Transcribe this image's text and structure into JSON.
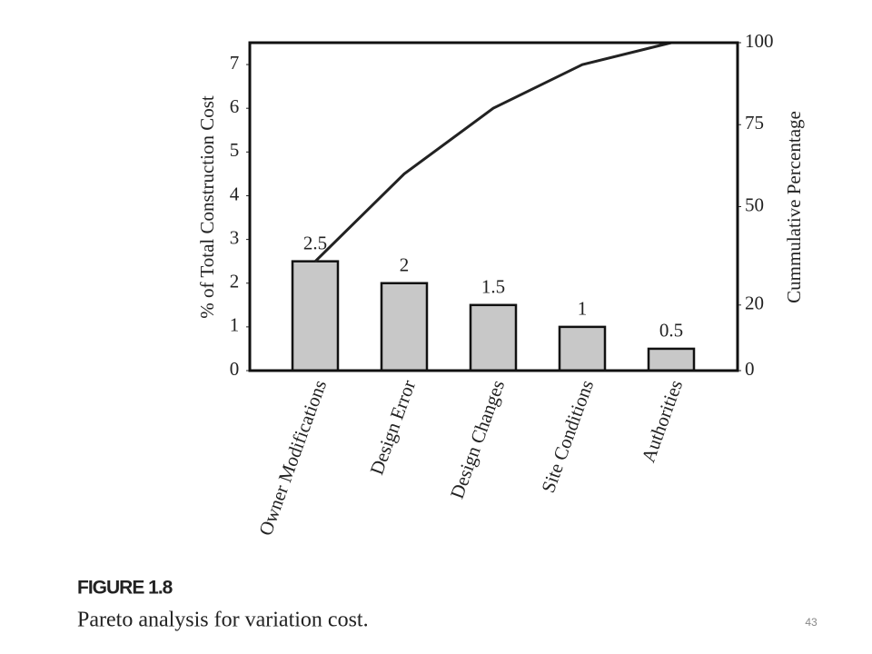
{
  "chart_data": {
    "type": "pareto",
    "y_label": "% of Total Construction Cost",
    "y2_label": "Cummulative Percentage",
    "categories": [
      "Owner Modifications",
      "Design Error",
      "Design Changes",
      "Site Conditions",
      "Authorities"
    ],
    "series": [
      {
        "name": "% of Total Construction Cost",
        "color": "#c8c8c8",
        "values": [
          2.5,
          2,
          1.5,
          1,
          0.5
        ]
      },
      {
        "name": "Cummulative Percentage",
        "color": "#222222",
        "axis": "y2",
        "values": [
          33.3,
          60,
          80,
          93.3,
          100
        ]
      }
    ],
    "ylim": [
      0,
      7.5
    ],
    "yticks": [
      0,
      1,
      2,
      3,
      4,
      5,
      6,
      7
    ],
    "y2lim": [
      0,
      100
    ],
    "y2ticks": [
      0,
      20,
      50,
      75,
      100
    ]
  },
  "caption": {
    "label": "FIGURE 1.8",
    "text": "Pareto analysis for variation cost."
  },
  "page_number": "43"
}
